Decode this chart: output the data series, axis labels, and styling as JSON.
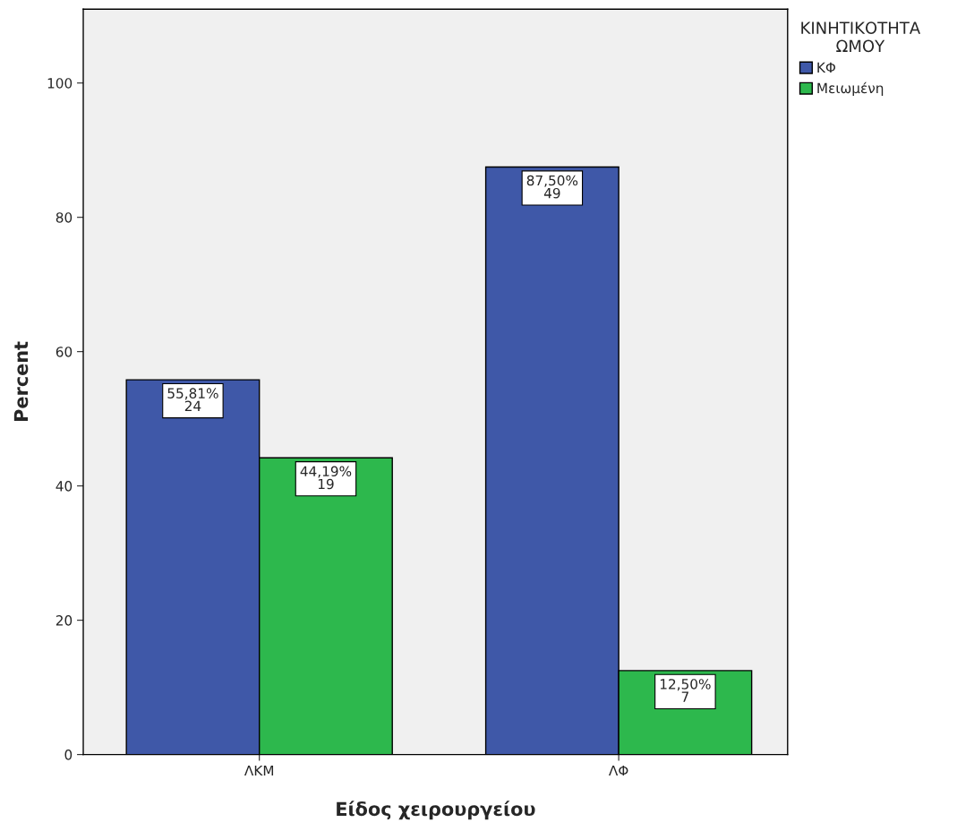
{
  "chart_data": {
    "type": "bar",
    "xlabel": "Είδος χειρουργείου",
    "ylabel": "Percent",
    "legend_title": "ΚΙΝΗΤΙΚΟΤΗΤΑ\nΩΜΟΥ",
    "categories": [
      "ΛΚΜ",
      "ΛΦ"
    ],
    "series": [
      {
        "name": "ΚΦ",
        "color": "#3f58a8",
        "values": [
          55.81,
          87.5
        ],
        "value_labels": [
          "55,81%\n24",
          "87,50%\n49"
        ]
      },
      {
        "name": "Μειωμένη",
        "color": "#2db84d",
        "values": [
          44.19,
          12.5
        ],
        "value_labels": [
          "44,19%\n19",
          "12,50%\n7"
        ]
      }
    ],
    "ylim": [
      0,
      111
    ],
    "yticks": [
      0,
      20,
      40,
      60,
      80,
      100
    ],
    "grid": false,
    "legend": "top right"
  }
}
